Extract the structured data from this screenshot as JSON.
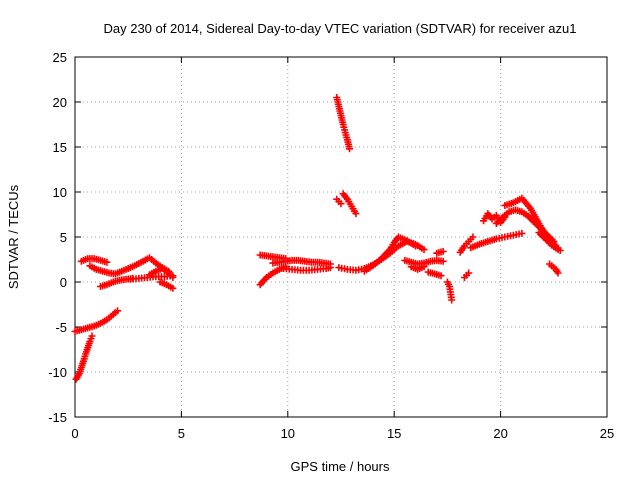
{
  "chart_data": {
    "type": "scatter",
    "title": "Day 230 of 2014, Sidereal Day-to-day VTEC variation (SDTVAR) for receiver azu1",
    "xlabel": "GPS time / hours",
    "ylabel": "SDTVAR / TECUs",
    "xlim": [
      0,
      25
    ],
    "ylim": [
      -15,
      25
    ],
    "xticks": [
      0,
      5,
      10,
      15,
      20,
      25
    ],
    "yticks": [
      -15,
      -10,
      -5,
      0,
      5,
      10,
      15,
      20,
      25
    ],
    "grid": true,
    "marker": "+",
    "color": "#ff0000",
    "series": [
      {
        "name": "SDTVAR",
        "segments": [
          {
            "x": [
              0.05,
              0.2,
              0.3,
              0.4,
              0.5,
              0.6,
              0.7,
              0.8
            ],
            "y": [
              -10.8,
              -10.2,
              -9.5,
              -8.8,
              -8.0,
              -7.3,
              -6.6,
              -6.0
            ]
          },
          {
            "x": [
              0.0,
              0.3,
              0.6,
              0.9,
              1.2,
              1.5,
              1.8,
              2.0
            ],
            "y": [
              -5.5,
              -5.3,
              -5.1,
              -4.9,
              -4.6,
              -4.2,
              -3.6,
              -3.2
            ]
          },
          {
            "x": [
              0.3,
              0.6,
              0.9,
              1.2,
              1.5
            ],
            "y": [
              2.3,
              2.6,
              2.6,
              2.4,
              2.2
            ]
          },
          {
            "x": [
              0.7,
              1.0,
              1.3,
              1.6,
              1.9
            ],
            "y": [
              1.8,
              1.4,
              1.2,
              1.0,
              0.9
            ]
          },
          {
            "x": [
              1.2,
              1.5,
              1.8,
              2.1,
              2.4,
              2.7
            ],
            "y": [
              -0.5,
              -0.3,
              0.0,
              0.2,
              0.3,
              0.4
            ]
          },
          {
            "x": [
              2.0,
              2.4,
              2.8,
              3.2,
              3.5,
              3.8,
              4.1,
              4.4
            ],
            "y": [
              1.0,
              1.4,
              1.8,
              2.3,
              2.7,
              2.1,
              1.6,
              1.2
            ]
          },
          {
            "x": [
              2.6,
              3.0,
              3.4,
              3.8,
              4.2,
              4.6
            ],
            "y": [
              0.3,
              0.4,
              0.5,
              0.6,
              0.6,
              0.7
            ]
          },
          {
            "x": [
              3.5,
              3.8,
              4.1,
              4.4,
              4.6
            ],
            "y": [
              0.8,
              1.2,
              1.5,
              1.0,
              0.5
            ]
          },
          {
            "x": [
              4.0,
              4.3,
              4.6
            ],
            "y": [
              0.0,
              -0.3,
              -0.7
            ]
          },
          {
            "x": [
              8.7,
              9.0,
              9.3,
              9.6,
              9.9
            ],
            "y": [
              3.0,
              2.9,
              2.8,
              2.7,
              2.6
            ]
          },
          {
            "x": [
              8.7,
              9.0,
              9.3,
              9.6,
              9.9
            ],
            "y": [
              -0.3,
              0.5,
              1.0,
              1.4,
              1.7
            ]
          },
          {
            "x": [
              9.3,
              9.6,
              9.9,
              10.2,
              10.5,
              10.8,
              11.1,
              11.4,
              11.7,
              12.0
            ],
            "y": [
              2.1,
              2.2,
              2.3,
              2.4,
              2.4,
              2.3,
              2.2,
              2.2,
              2.1,
              2.0
            ]
          },
          {
            "x": [
              9.8,
              10.2,
              10.6,
              11.0,
              11.4,
              11.8,
              12.0
            ],
            "y": [
              1.5,
              1.4,
              1.3,
              1.3,
              1.4,
              1.5,
              1.6
            ]
          },
          {
            "x": [
              12.3,
              12.4,
              12.5,
              12.6,
              12.7,
              12.8,
              12.9
            ],
            "y": [
              20.5,
              19.5,
              18.5,
              17.5,
              16.6,
              15.8,
              14.8
            ]
          },
          {
            "x": [
              12.3,
              12.5
            ],
            "y": [
              9.2,
              8.7
            ]
          },
          {
            "x": [
              12.6,
              12.8,
              13.0,
              13.2
            ],
            "y": [
              9.8,
              9.2,
              8.4,
              7.6
            ]
          },
          {
            "x": [
              12.4,
              12.8,
              13.2,
              13.6,
              14.0,
              14.4,
              14.8,
              15.2,
              15.6,
              16.0,
              16.4
            ],
            "y": [
              1.6,
              1.4,
              1.3,
              1.5,
              1.9,
              2.5,
              3.2,
              4.0,
              4.5,
              4.2,
              3.6
            ]
          },
          {
            "x": [
              13.6,
              14.0,
              14.4,
              14.8,
              15.0,
              15.2,
              15.6,
              16.0
            ],
            "y": [
              1.2,
              1.8,
              2.6,
              3.6,
              4.4,
              5.0,
              4.6,
              4.0
            ]
          },
          {
            "x": [
              15.5,
              15.8,
              16.1,
              16.4,
              16.7,
              17.0,
              17.3
            ],
            "y": [
              2.4,
              2.2,
              2.0,
              2.1,
              2.3,
              2.4,
              2.3
            ]
          },
          {
            "x": [
              15.8,
              16.1,
              16.4
            ],
            "y": [
              1.7,
              1.4,
              1.7
            ]
          },
          {
            "x": [
              16.6,
              16.9,
              17.2
            ],
            "y": [
              1.1,
              0.9,
              0.7
            ]
          },
          {
            "x": [
              17.0,
              17.3
            ],
            "y": [
              3.2,
              3.4
            ]
          },
          {
            "x": [
              17.5,
              17.6,
              17.7
            ],
            "y": [
              0.0,
              -0.5,
              -2.0
            ]
          },
          {
            "x": [
              18.3,
              18.5
            ],
            "y": [
              0.5,
              1.0
            ]
          },
          {
            "x": [
              18.1,
              18.3,
              18.5,
              18.7
            ],
            "y": [
              3.3,
              4.0,
              4.5,
              5.0
            ]
          },
          {
            "x": [
              18.6,
              19.0,
              19.4,
              19.8,
              20.2,
              20.6,
              21.0
            ],
            "y": [
              3.8,
              4.2,
              4.5,
              4.8,
              5.0,
              5.2,
              5.4
            ]
          },
          {
            "x": [
              19.2,
              19.4,
              19.6,
              19.8,
              20.0,
              20.2
            ],
            "y": [
              6.8,
              7.6,
              7.0,
              7.4,
              6.6,
              7.2
            ]
          },
          {
            "x": [
              19.8,
              20.1,
              20.4,
              20.7,
              21.0,
              21.3,
              21.6,
              21.9,
              22.2,
              22.5
            ],
            "y": [
              6.5,
              7.2,
              7.8,
              8.0,
              7.8,
              7.3,
              6.6,
              5.9,
              5.2,
              4.5
            ]
          },
          {
            "x": [
              20.2,
              20.6,
              21.0,
              21.4,
              21.8,
              22.2,
              22.6,
              22.8
            ],
            "y": [
              8.5,
              8.8,
              9.3,
              8.2,
              6.5,
              5.0,
              4.0,
              3.5
            ]
          },
          {
            "x": [
              21.8,
              22.1,
              22.4,
              22.7
            ],
            "y": [
              5.5,
              4.8,
              4.1,
              3.6
            ]
          },
          {
            "x": [
              22.3,
              22.6,
              22.7
            ],
            "y": [
              2.0,
              1.4,
              1.0
            ]
          }
        ]
      }
    ]
  }
}
